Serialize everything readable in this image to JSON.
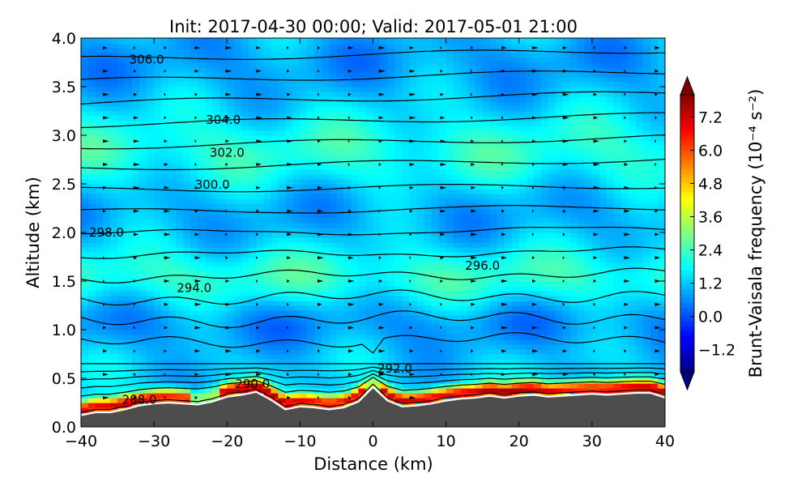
{
  "chart_data": {
    "type": "heatmap",
    "title": "Init: 2017-04-30 00:00; Valid: 2017-05-01 21:00",
    "xlabel": "Distance (km)",
    "ylabel": "Altitude (km)",
    "xlim": [
      -40,
      40
    ],
    "ylim": [
      0.0,
      4.0
    ],
    "x_ticks": [
      -40,
      -30,
      -20,
      -10,
      0,
      10,
      20,
      30,
      40
    ],
    "x_tick_labels": [
      "−40",
      "−30",
      "−20",
      "−10",
      "0",
      "10",
      "20",
      "30",
      "40"
    ],
    "y_ticks": [
      0.0,
      0.5,
      1.0,
      1.5,
      2.0,
      2.5,
      3.0,
      3.5,
      4.0
    ],
    "y_tick_labels": [
      "0.0",
      "0.5",
      "1.0",
      "1.5",
      "2.0",
      "2.5",
      "3.0",
      "3.5",
      "4.0"
    ],
    "colorbar": {
      "label": "Brunt-Vaisala frequency (10⁻⁴ s⁻²)",
      "range": [
        -2.0,
        8.0
      ],
      "extend": "both",
      "ticks": [
        -1.2,
        0.0,
        1.2,
        2.4,
        3.6,
        4.8,
        6.0,
        7.2
      ],
      "tick_labels": [
        "−1.2",
        "0.0",
        "1.2",
        "2.4",
        "3.6",
        "4.8",
        "6.0",
        "7.2"
      ],
      "colormap": "jet"
    },
    "terrain": {
      "color": "#4d4d4d",
      "outline_color": "#ffffff",
      "x": [
        -40,
        -38,
        -36,
        -34,
        -32,
        -30,
        -28,
        -26,
        -24,
        -22,
        -20,
        -18,
        -16,
        -14,
        -12,
        -10,
        -8,
        -6,
        -4,
        -2,
        0,
        2,
        4,
        6,
        8,
        10,
        12,
        14,
        16,
        18,
        20,
        22,
        24,
        26,
        28,
        30,
        32,
        34,
        36,
        38,
        40
      ],
      "z": [
        0.12,
        0.15,
        0.15,
        0.18,
        0.22,
        0.24,
        0.25,
        0.24,
        0.23,
        0.26,
        0.31,
        0.33,
        0.36,
        0.28,
        0.18,
        0.21,
        0.2,
        0.18,
        0.2,
        0.26,
        0.41,
        0.27,
        0.21,
        0.22,
        0.24,
        0.27,
        0.29,
        0.3,
        0.32,
        0.3,
        0.32,
        0.33,
        0.31,
        0.32,
        0.33,
        0.34,
        0.33,
        0.34,
        0.35,
        0.35,
        0.3
      ]
    },
    "isentropes_K": [
      286,
      288,
      289,
      290,
      291,
      292,
      293,
      294,
      295,
      296,
      297,
      298,
      299,
      300,
      301,
      302,
      303,
      304,
      305,
      306
    ],
    "contour_labels": [
      {
        "text": "306.0",
        "x": -31,
        "y": 3.78
      },
      {
        "text": "304.0",
        "x": -20.5,
        "y": 3.16
      },
      {
        "text": "302.0",
        "x": -20,
        "y": 2.82
      },
      {
        "text": "300.0",
        "x": -22,
        "y": 2.49
      },
      {
        "text": "298.0",
        "x": -36.5,
        "y": 2.0
      },
      {
        "text": "296.0",
        "x": 15,
        "y": 1.66
      },
      {
        "text": "294.0",
        "x": -24.5,
        "y": 1.43
      },
      {
        "text": "292.0",
        "x": 3,
        "y": 0.6
      },
      {
        "text": "290.0",
        "x": -16.5,
        "y": 0.44
      },
      {
        "text": "288.0",
        "x": -32,
        "y": 0.28
      }
    ]
  }
}
